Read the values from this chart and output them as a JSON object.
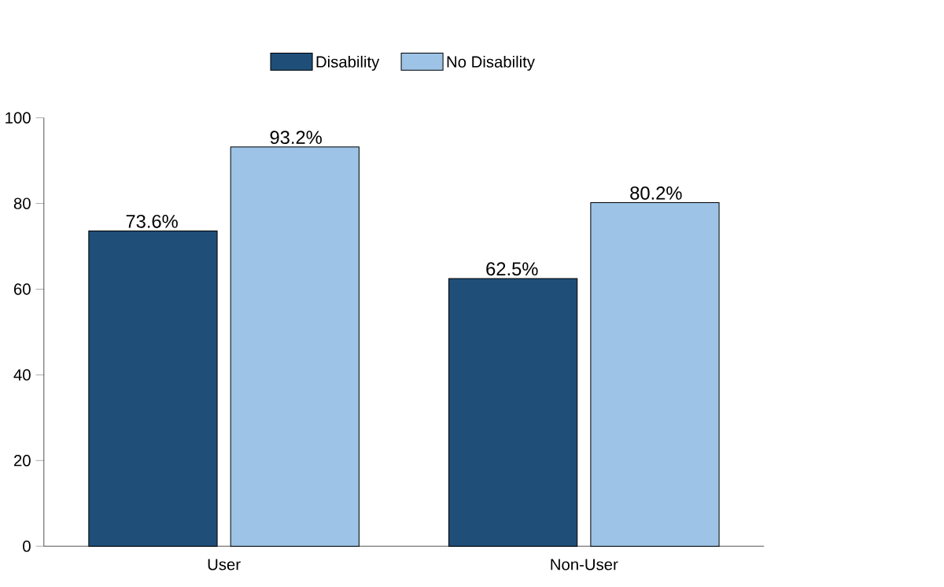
{
  "chart_data": {
    "type": "bar",
    "categories": [
      "User",
      "Non-User"
    ],
    "series": [
      {
        "name": "Disability",
        "color": "#1f4e79",
        "values": [
          73.6,
          62.5
        ],
        "value_labels": [
          "73.6%",
          "62.5%"
        ]
      },
      {
        "name": "No Disability",
        "color": "#9dc3e6",
        "values": [
          93.2,
          80.2
        ],
        "value_labels": [
          "93.2%",
          "80.2%"
        ]
      }
    ],
    "ylim": [
      0,
      100
    ],
    "yticks": [
      0,
      20,
      40,
      60,
      80,
      100
    ],
    "legend": "top"
  }
}
